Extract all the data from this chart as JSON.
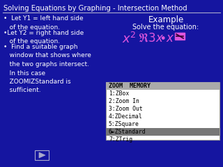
{
  "title": "Solving Equations by Graphing - Intersection Method",
  "bg_color": "#1515a0",
  "title_color": "#ffffff",
  "bullet_color": "#ffffff",
  "example_color": "#ffffff",
  "equation_color": "#dd55dd",
  "bullet1": "•  Let Y1 = left hand side\n   of the equation.",
  "bullet2": "•Let Y2 = right hand side\n   of the equation.",
  "bullet3": "•  Find a suitable graph\n   window that shows where\n   the two graphs intersect.\n   In this case\n   ZOOMIZStandard is\n   sufficient.",
  "example_label": "Example",
  "solve_label": "Solve the equation:",
  "menu_title": "ZOOM  MEMORY",
  "menu_items": [
    "1:ZBox",
    "2:Zoom In",
    "3:Zoom Out",
    "4:ZDecimal",
    "5:ZSquare",
    "6►ZStandard",
    "7:ZTrig"
  ],
  "menu_bg": "#ffffff",
  "menu_text": "#000000",
  "menu_title_bg": "#aaaaaa",
  "menu_highlight_bg": "#777777",
  "separator_color": "#aaaacc",
  "nav_color": "#aaaacc",
  "nav_border": "#aaaacc"
}
